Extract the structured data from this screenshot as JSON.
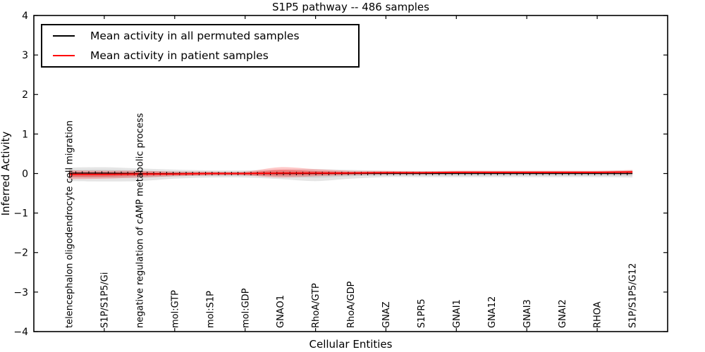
{
  "title": "S1P5 pathway -- 486 samples",
  "legend": {
    "items": [
      {
        "label": "Mean activity in all permuted samples",
        "color": "#000000"
      },
      {
        "label": "Mean activity in patient samples",
        "color": "#ff0000"
      }
    ]
  },
  "chart_data": {
    "type": "line",
    "title": "S1P5 pathway -- 486 samples",
    "xlabel": "Cellular Entities",
    "ylabel": "Inferred Activity",
    "ylim": [
      -4,
      4
    ],
    "yticks": [
      "4",
      "3",
      "2",
      "1",
      "0",
      "−1",
      "−2",
      "−3",
      "−4"
    ],
    "grid": false,
    "legend_position": "upper left",
    "categories": [
      "telencephalon oligodendrocyte cell migration",
      "S1P/S1P5/Gi",
      "negative regulation of cAMP metabolic process",
      "mol:GTP",
      "mol:S1P",
      "mol:GDP",
      "GNAO1",
      "RhoA/GTP",
      "RhoA/GDP",
      "GNAZ",
      "S1PR5",
      "GNAI1",
      "GNA12",
      "GNAI3",
      "GNAI2",
      "RHOA",
      "S1P/S1P5/G12"
    ],
    "series": [
      {
        "name": "Mean activity in all permuted samples",
        "color": "#000000",
        "band_color": "#888888",
        "values": [
          0.01,
          0.01,
          0.0,
          0.0,
          0.0,
          0.0,
          0.0,
          0.0,
          0.0,
          0.0,
          0.0,
          0.0,
          0.0,
          0.0,
          0.0,
          0.0,
          0.0
        ],
        "band_upper": [
          0.14,
          0.15,
          0.13,
          0.1,
          0.08,
          0.08,
          0.1,
          0.11,
          0.09,
          0.07,
          0.07,
          0.07,
          0.07,
          0.07,
          0.07,
          0.07,
          0.08
        ],
        "band_lower": [
          0.2,
          0.21,
          0.19,
          0.13,
          0.1,
          0.1,
          0.14,
          0.19,
          0.13,
          0.09,
          0.09,
          0.09,
          0.09,
          0.09,
          0.09,
          0.09,
          0.1
        ]
      },
      {
        "name": "Mean activity in patient samples",
        "color": "#ff0000",
        "band_color": "#ff0000",
        "values": [
          -0.02,
          -0.02,
          -0.01,
          -0.01,
          0.0,
          0.0,
          0.01,
          0.01,
          0.01,
          0.02,
          0.02,
          0.03,
          0.03,
          0.03,
          0.03,
          0.03,
          0.04
        ],
        "band_upper": [
          0.1,
          0.09,
          0.08,
          0.06,
          0.05,
          0.05,
          0.15,
          0.1,
          0.06,
          0.05,
          0.04,
          0.04,
          0.04,
          0.04,
          0.04,
          0.04,
          0.05
        ],
        "band_lower": [
          0.12,
          0.11,
          0.09,
          0.06,
          0.05,
          0.05,
          0.11,
          0.08,
          0.05,
          0.04,
          0.04,
          0.04,
          0.04,
          0.04,
          0.04,
          0.04,
          0.06
        ]
      }
    ]
  }
}
